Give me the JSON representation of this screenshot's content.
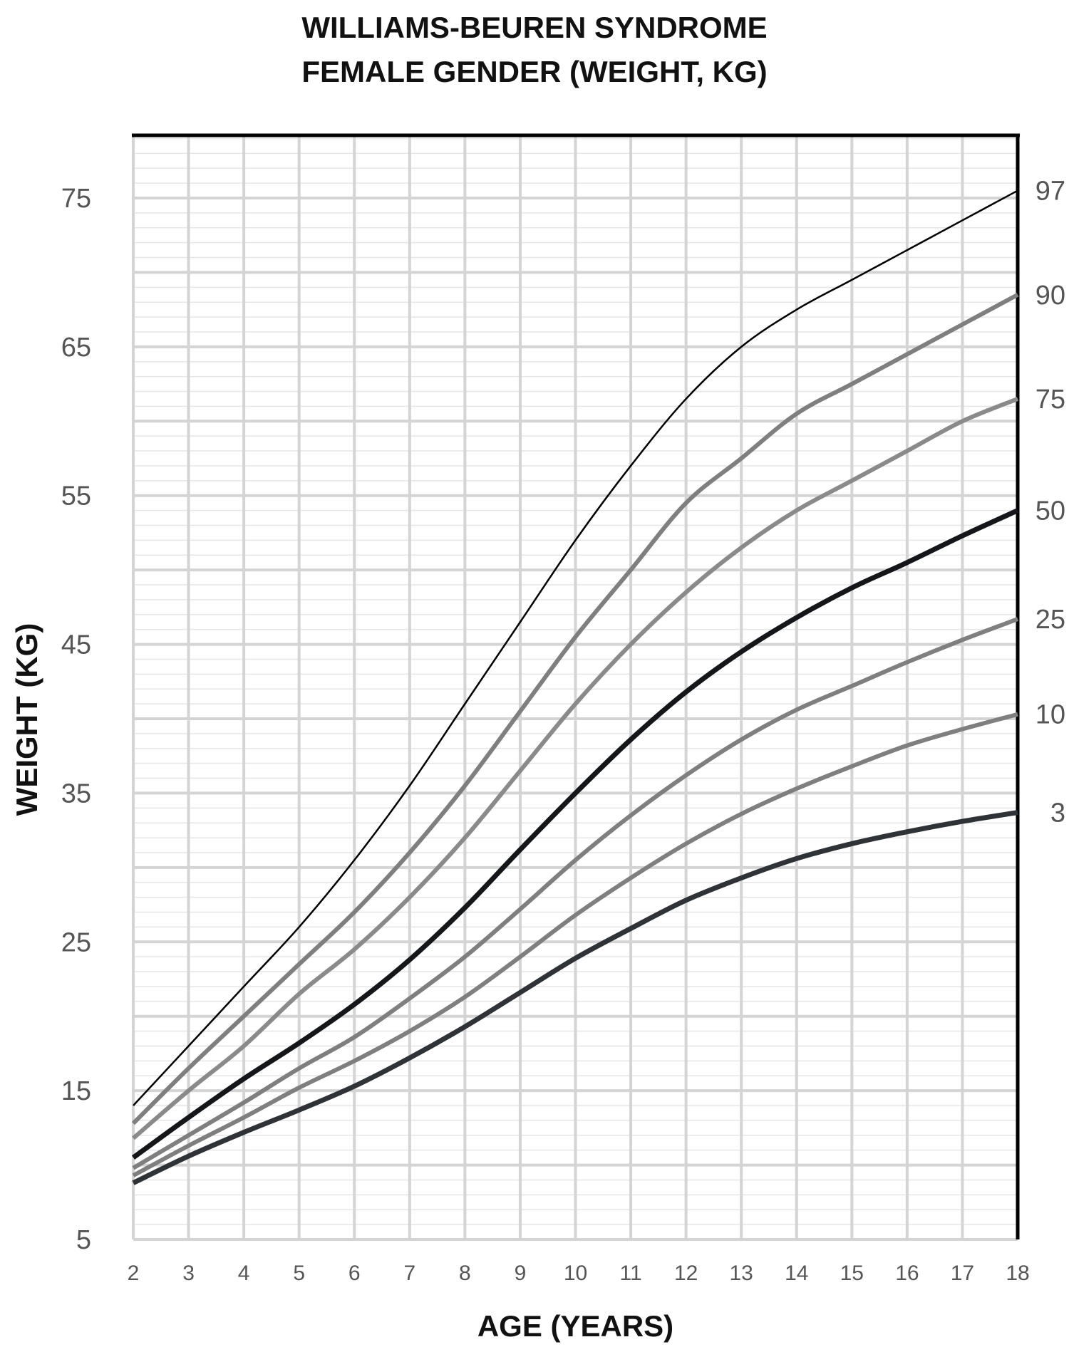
{
  "chart_data": {
    "type": "line",
    "title": "WILLIAMS-BEUREN SYNDROME",
    "subtitle": "FEMALE GENDER (WEIGHT, KG)",
    "xlabel": "AGE (YEARS)",
    "ylabel": "WEIGHT (KG)",
    "xlim": [
      2,
      18
    ],
    "ylim": [
      5,
      80
    ],
    "x_ticks": [
      2,
      3,
      4,
      5,
      6,
      7,
      8,
      9,
      10,
      11,
      12,
      13,
      14,
      15,
      16,
      17,
      18
    ],
    "y_ticks": [
      5,
      15,
      25,
      35,
      45,
      55,
      65,
      75
    ],
    "grid": {
      "major_x_every": 1,
      "major_y_every": 5,
      "minor_y_every": 1
    },
    "legend_position": "right-edge labels",
    "x": [
      2,
      3,
      4,
      5,
      6,
      7,
      8,
      9,
      10,
      11,
      12,
      13,
      14,
      15,
      16,
      17,
      18
    ],
    "series": [
      {
        "name": "97",
        "color": "#000000",
        "width": 2.5,
        "values": [
          14,
          18,
          22,
          26,
          30.5,
          35.5,
          41,
          46.5,
          52,
          57,
          61.5,
          65,
          67.5,
          69.5,
          71.5,
          73.5,
          75.5
        ]
      },
      {
        "name": "90",
        "color": "#7f7f7f",
        "width": 6,
        "values": [
          12.8,
          16.5,
          20,
          23.5,
          27,
          31,
          35.5,
          40.5,
          45.5,
          50,
          54.5,
          57.5,
          60.5,
          62.5,
          64.5,
          66.5,
          68.5
        ]
      },
      {
        "name": "75",
        "color": "#8a8a8a",
        "width": 6,
        "values": [
          11.8,
          15,
          18,
          21.5,
          24.5,
          28,
          32,
          36.5,
          41,
          45,
          48.5,
          51.5,
          54,
          56,
          58,
          60,
          61.5
        ]
      },
      {
        "name": "50",
        "color": "#141619",
        "width": 7,
        "values": [
          10.5,
          13.2,
          15.8,
          18.2,
          20.8,
          23.8,
          27.3,
          31.2,
          35,
          38.6,
          41.8,
          44.5,
          46.8,
          48.8,
          50.5,
          52.3,
          54
        ]
      },
      {
        "name": "25",
        "color": "#7f7f7f",
        "width": 6,
        "values": [
          9.8,
          12,
          14.2,
          16.5,
          18.6,
          21.2,
          24,
          27.2,
          30.5,
          33.5,
          36.2,
          38.6,
          40.6,
          42.2,
          43.8,
          45.3,
          46.7
        ]
      },
      {
        "name": "10",
        "color": "#7f7f7f",
        "width": 6,
        "values": [
          9.3,
          11.3,
          13.2,
          15.2,
          17,
          19,
          21.3,
          24,
          26.8,
          29.3,
          31.6,
          33.6,
          35.3,
          36.8,
          38.2,
          39.3,
          40.3
        ]
      },
      {
        "name": "3",
        "color": "#2f3236",
        "width": 7,
        "values": [
          8.8,
          10.6,
          12.2,
          13.7,
          15.3,
          17.2,
          19.3,
          21.6,
          23.9,
          25.9,
          27.8,
          29.3,
          30.6,
          31.6,
          32.4,
          33.1,
          33.7
        ]
      }
    ]
  }
}
